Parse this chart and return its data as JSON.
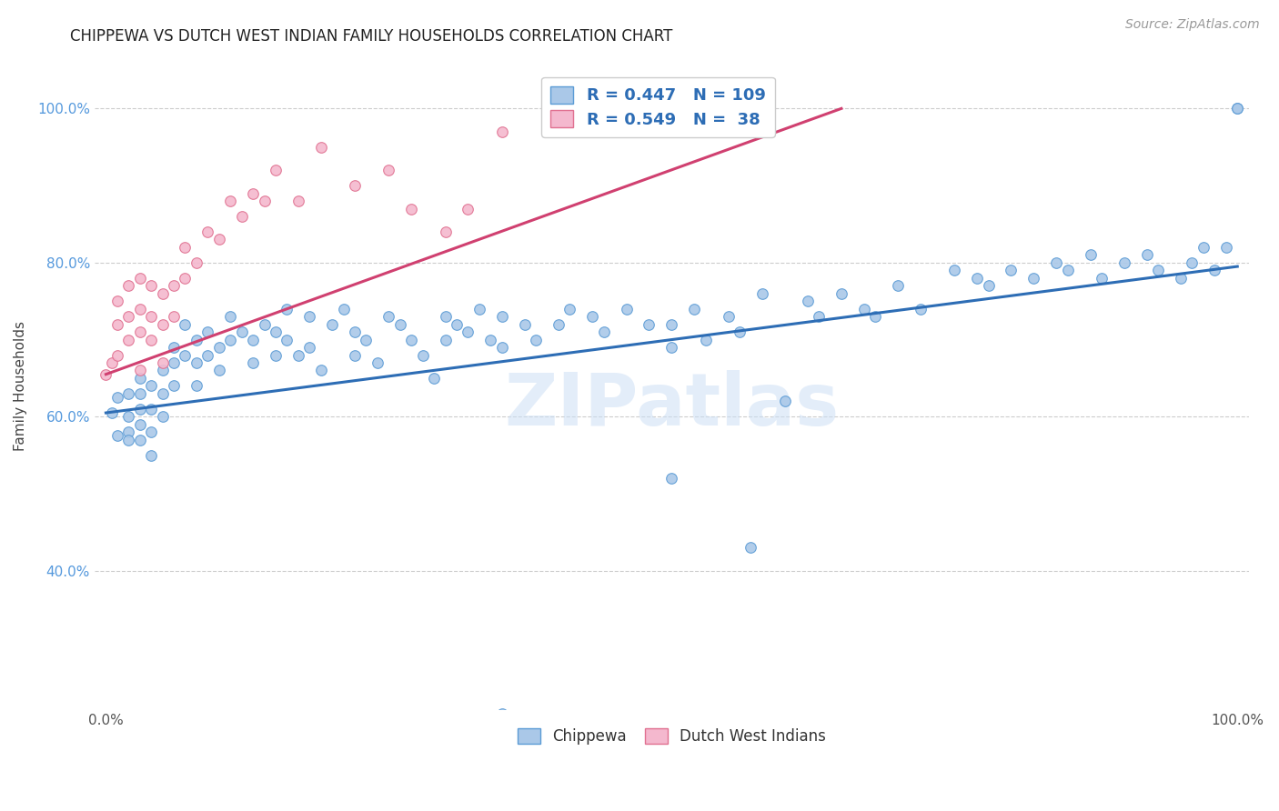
{
  "title": "CHIPPEWA VS DUTCH WEST INDIAN FAMILY HOUSEHOLDS CORRELATION CHART",
  "source": "Source: ZipAtlas.com",
  "ylabel": "Family Households",
  "legend_R_blue": "R = 0.447",
  "legend_N_blue": "N = 109",
  "legend_R_pink": "R = 0.549",
  "legend_N_pink": "N =  38",
  "watermark": "ZIPatlas",
  "blue_fill": "#aac8e8",
  "blue_edge": "#5b9bd5",
  "pink_fill": "#f4b8ce",
  "pink_edge": "#e07090",
  "blue_line_color": "#2d6db5",
  "pink_line_color": "#d04070",
  "legend_text_color": "#2d6db5",
  "ytick_color": "#5599dd",
  "grid_color": "#cccccc",
  "title_fontsize": 12,
  "source_fontsize": 10,
  "ylabel_fontsize": 11,
  "tick_fontsize": 11,
  "legend_fontsize": 13,
  "marker_size": 70,
  "chip_x": [
    0.005,
    0.01,
    0.01,
    0.02,
    0.02,
    0.02,
    0.02,
    0.03,
    0.03,
    0.03,
    0.03,
    0.03,
    0.04,
    0.04,
    0.04,
    0.04,
    0.05,
    0.05,
    0.05,
    0.06,
    0.06,
    0.06,
    0.07,
    0.07,
    0.08,
    0.08,
    0.08,
    0.09,
    0.09,
    0.1,
    0.1,
    0.11,
    0.11,
    0.12,
    0.13,
    0.13,
    0.14,
    0.15,
    0.15,
    0.16,
    0.16,
    0.17,
    0.18,
    0.18,
    0.19,
    0.2,
    0.21,
    0.22,
    0.22,
    0.23,
    0.24,
    0.25,
    0.26,
    0.27,
    0.28,
    0.29,
    0.3,
    0.3,
    0.31,
    0.32,
    0.33,
    0.34,
    0.35,
    0.35,
    0.37,
    0.38,
    0.4,
    0.41,
    0.43,
    0.44,
    0.46,
    0.48,
    0.5,
    0.5,
    0.52,
    0.53,
    0.55,
    0.56,
    0.58,
    0.6,
    0.62,
    0.63,
    0.65,
    0.67,
    0.68,
    0.7,
    0.72,
    0.75,
    0.77,
    0.78,
    0.8,
    0.82,
    0.84,
    0.85,
    0.87,
    0.88,
    0.9,
    0.92,
    0.93,
    0.95,
    0.96,
    0.97,
    0.98,
    0.99,
    1.0,
    1.0,
    0.35,
    0.5,
    0.57
  ],
  "chip_y": [
    0.605,
    0.575,
    0.625,
    0.63,
    0.6,
    0.58,
    0.57,
    0.65,
    0.63,
    0.61,
    0.59,
    0.57,
    0.64,
    0.61,
    0.58,
    0.55,
    0.66,
    0.63,
    0.6,
    0.69,
    0.67,
    0.64,
    0.72,
    0.68,
    0.7,
    0.67,
    0.64,
    0.71,
    0.68,
    0.69,
    0.66,
    0.73,
    0.7,
    0.71,
    0.7,
    0.67,
    0.72,
    0.71,
    0.68,
    0.74,
    0.7,
    0.68,
    0.73,
    0.69,
    0.66,
    0.72,
    0.74,
    0.71,
    0.68,
    0.7,
    0.67,
    0.73,
    0.72,
    0.7,
    0.68,
    0.65,
    0.73,
    0.7,
    0.72,
    0.71,
    0.74,
    0.7,
    0.73,
    0.69,
    0.72,
    0.7,
    0.72,
    0.74,
    0.73,
    0.71,
    0.74,
    0.72,
    0.69,
    0.72,
    0.74,
    0.7,
    0.73,
    0.71,
    0.76,
    0.62,
    0.75,
    0.73,
    0.76,
    0.74,
    0.73,
    0.77,
    0.74,
    0.79,
    0.78,
    0.77,
    0.79,
    0.78,
    0.8,
    0.79,
    0.81,
    0.78,
    0.8,
    0.81,
    0.79,
    0.78,
    0.8,
    0.82,
    0.79,
    0.82,
    1.0,
    1.0,
    0.215,
    0.52,
    0.43
  ],
  "dutch_x": [
    0.0,
    0.005,
    0.01,
    0.01,
    0.01,
    0.02,
    0.02,
    0.02,
    0.03,
    0.03,
    0.03,
    0.03,
    0.04,
    0.04,
    0.04,
    0.05,
    0.05,
    0.05,
    0.06,
    0.06,
    0.07,
    0.07,
    0.08,
    0.09,
    0.1,
    0.11,
    0.12,
    0.13,
    0.14,
    0.15,
    0.17,
    0.19,
    0.22,
    0.25,
    0.27,
    0.3,
    0.32,
    0.35
  ],
  "dutch_y": [
    0.655,
    0.67,
    0.68,
    0.72,
    0.75,
    0.7,
    0.73,
    0.77,
    0.66,
    0.71,
    0.74,
    0.78,
    0.7,
    0.73,
    0.77,
    0.67,
    0.72,
    0.76,
    0.73,
    0.77,
    0.78,
    0.82,
    0.8,
    0.84,
    0.83,
    0.88,
    0.86,
    0.89,
    0.88,
    0.92,
    0.88,
    0.95,
    0.9,
    0.92,
    0.87,
    0.84,
    0.87,
    0.97
  ],
  "blue_line_x0": 0.0,
  "blue_line_x1": 1.0,
  "blue_line_y0": 0.605,
  "blue_line_y1": 0.795,
  "pink_line_x0": 0.0,
  "pink_line_x1": 0.65,
  "pink_line_y0": 0.655,
  "pink_line_y1": 1.0,
  "xlim": [
    -0.01,
    1.01
  ],
  "ylim": [
    0.22,
    1.06
  ],
  "yticks": [
    0.4,
    0.6,
    0.8,
    1.0
  ],
  "xtick_positions": [
    0.0,
    1.0
  ],
  "xtick_labels": [
    "0.0%",
    "100.0%"
  ]
}
